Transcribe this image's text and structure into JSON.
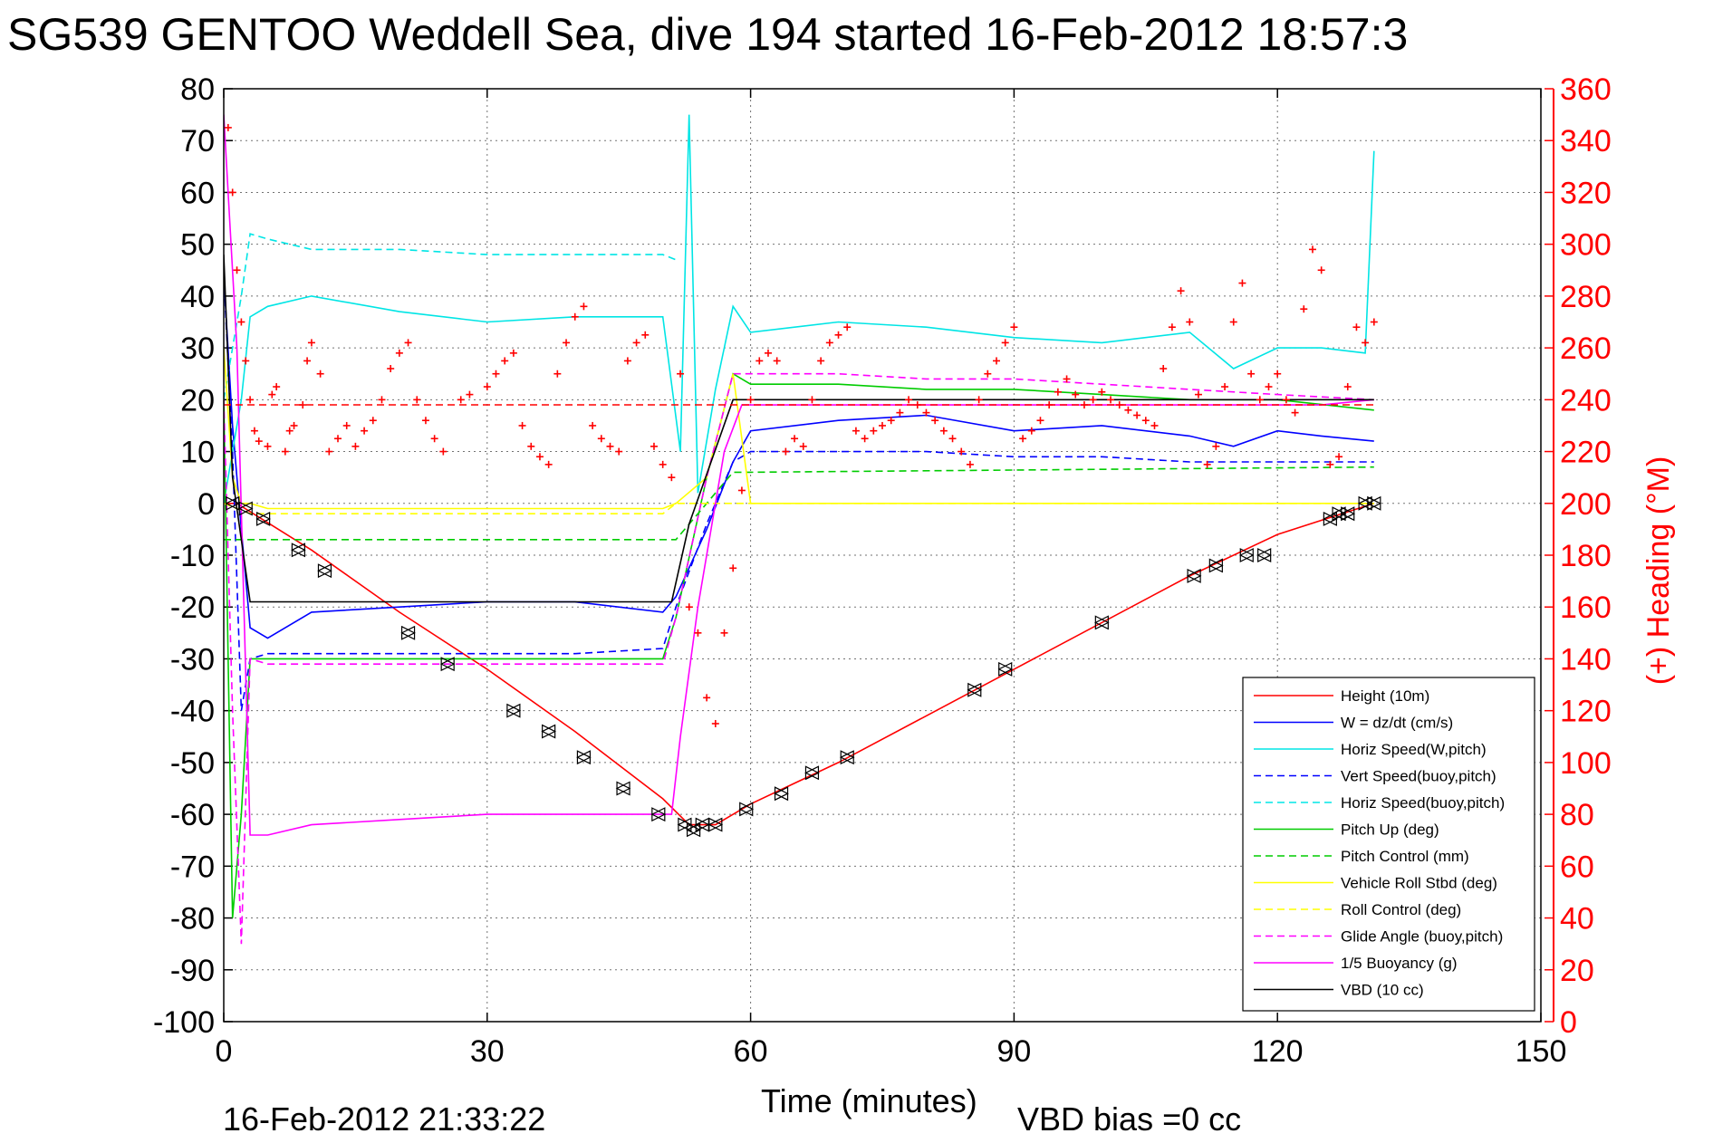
{
  "chart_data": {
    "type": "line",
    "title": "SG539 GENTOO Weddell Sea, dive 194 started 16-Feb-2012 18:57:3",
    "xlabel": "Time (minutes)",
    "ylabel": "",
    "y2label": "(+) Heading (°M)",
    "xlim": [
      0,
      150
    ],
    "ylim": [
      -100,
      80
    ],
    "y2lim": [
      0,
      360
    ],
    "xticks": [
      "0",
      "30",
      "60",
      "90",
      "120",
      "150"
    ],
    "yticks": [
      "80",
      "70",
      "60",
      "50",
      "40",
      "30",
      "20",
      "10",
      "0",
      "-10",
      "-20",
      "-30",
      "-40",
      "-50",
      "-60",
      "-70",
      "-80",
      "-90",
      "-100"
    ],
    "y2ticks": [
      "360",
      "340",
      "320",
      "300",
      "280",
      "260",
      "240",
      "220",
      "200",
      "180",
      "160",
      "140",
      "120",
      "100",
      "80",
      "60",
      "40",
      "20",
      "0"
    ],
    "grid": true,
    "legend_position": "bottom-right",
    "footer_left": "16-Feb-2012 21:33:22",
    "footer_right": "VBD bias =0 cc",
    "series": [
      {
        "name": "Height (10m)",
        "color": "#ff0000",
        "style": "solid",
        "x": [
          0,
          1.5,
          10,
          20,
          30,
          40,
          50,
          53,
          56,
          60,
          70,
          80,
          90,
          100,
          110,
          120,
          131
        ],
        "y": [
          0,
          0,
          -9,
          -21,
          -32,
          -44,
          -57,
          -62,
          -62,
          -58,
          -50,
          -41,
          -32,
          -23,
          -14,
          -6,
          0
        ]
      },
      {
        "name": "W = dz/dt (cm/s)",
        "color": "#0000ff",
        "style": "solid",
        "x": [
          0,
          1,
          2,
          3,
          5,
          10,
          20,
          30,
          40,
          50,
          51.5,
          55,
          58,
          60,
          70,
          80,
          90,
          100,
          110,
          115,
          120,
          125,
          131
        ],
        "y": [
          44,
          15,
          -5,
          -24,
          -26,
          -21,
          -20,
          -19,
          -19,
          -21,
          -18,
          -5,
          8,
          14,
          16,
          17,
          14,
          15,
          13,
          11,
          14,
          13,
          12
        ]
      },
      {
        "name": "Horiz Speed(W,pitch)",
        "color": "#00e5e5",
        "style": "solid",
        "x": [
          0,
          2,
          3,
          5,
          10,
          20,
          30,
          40,
          50,
          52,
          53,
          54,
          56,
          58,
          60,
          70,
          80,
          90,
          100,
          110,
          115,
          120,
          125,
          130,
          131
        ],
        "y": [
          0,
          20,
          36,
          38,
          40,
          37,
          35,
          36,
          36,
          10,
          75,
          2,
          22,
          38,
          33,
          35,
          34,
          32,
          31,
          33,
          26,
          30,
          30,
          29,
          68
        ]
      },
      {
        "name": "Vert Speed(buoy,pitch)",
        "color": "#0000ff",
        "style": "dashed",
        "x": [
          0,
          1,
          2,
          3,
          5,
          10,
          20,
          30,
          40,
          50,
          51.5,
          55,
          58,
          60,
          70,
          80,
          90,
          100,
          110,
          120,
          131
        ],
        "y": [
          44,
          10,
          -40,
          -30,
          -29,
          -29,
          -29,
          -29,
          -29,
          -28,
          -20,
          -4,
          8,
          10,
          10,
          10,
          9,
          9,
          8,
          8,
          8
        ]
      },
      {
        "name": "Horiz Speed(buoy,pitch)",
        "color": "#00e5e5",
        "style": "dashed",
        "x": [
          0,
          2,
          3,
          5,
          10,
          20,
          30,
          40,
          50,
          51.5
        ],
        "y": [
          20,
          40,
          52,
          51,
          49,
          49,
          48,
          48,
          48,
          47
        ]
      },
      {
        "name": "Pitch Up (deg)",
        "color": "#00cc00",
        "style": "solid",
        "x": [
          0,
          1,
          2,
          3,
          5,
          10,
          20,
          30,
          40,
          50,
          51.5,
          55,
          58,
          60,
          70,
          80,
          90,
          100,
          110,
          120,
          131
        ],
        "y": [
          20,
          -80,
          -60,
          -30,
          -30,
          -30,
          -30,
          -30,
          -30,
          -30,
          -22,
          5,
          25,
          23,
          23,
          22,
          22,
          21,
          20,
          20,
          18
        ]
      },
      {
        "name": "Pitch Control (mm)",
        "color": "#00cc00",
        "style": "dashed",
        "x": [
          0,
          3,
          10,
          20,
          30,
          40,
          50,
          51.5,
          55,
          58,
          60,
          131
        ],
        "y": [
          -7,
          -7,
          -7,
          -7,
          -7,
          -7,
          -7,
          -7,
          0,
          6,
          6,
          7
        ]
      },
      {
        "name": "Vehicle Roll Stbd (deg)",
        "color": "#ffff00",
        "style": "solid",
        "x": [
          0,
          1,
          2,
          3,
          5,
          10,
          20,
          30,
          40,
          50,
          51.5,
          55,
          58,
          60,
          70,
          80,
          90,
          100,
          110,
          120,
          131
        ],
        "y": [
          30,
          5,
          0,
          0,
          -1,
          -1,
          -1,
          -1,
          -1,
          -1,
          0,
          5,
          25,
          0,
          0,
          0,
          0,
          0,
          0,
          0,
          0
        ]
      },
      {
        "name": "Roll Control (deg)",
        "color": "#ffff00",
        "style": "dashed",
        "x": [
          0,
          3,
          5,
          10,
          20,
          30,
          40,
          50,
          51.5,
          60,
          70,
          80,
          90,
          100,
          110,
          120,
          131
        ],
        "y": [
          0,
          -2,
          -2,
          -2,
          -2,
          -2,
          -2,
          -2,
          0,
          0,
          0,
          0,
          0,
          0,
          0,
          0,
          0
        ]
      },
      {
        "name": "Glide Angle (buoy,pitch)",
        "color": "#ff00ff",
        "style": "dashed",
        "x": [
          0,
          1,
          2,
          3,
          5,
          10,
          20,
          30,
          40,
          50,
          51.5,
          55,
          58,
          60,
          70,
          80,
          90,
          100,
          110,
          120,
          131
        ],
        "y": [
          20,
          -40,
          -85,
          -30,
          -31,
          -31,
          -31,
          -31,
          -31,
          -31,
          -22,
          5,
          25,
          25,
          25,
          24,
          24,
          23,
          22,
          21,
          20
        ]
      },
      {
        "name": "1/5 Buoyancy (g)",
        "color": "#ff00ff",
        "style": "solid",
        "x": [
          0,
          1.5,
          3,
          5,
          10,
          20,
          30,
          40,
          51,
          52,
          54,
          57,
          59,
          60,
          70,
          80,
          90,
          100,
          110,
          120,
          125,
          131
        ],
        "y": [
          75,
          30,
          -64,
          -64,
          -62,
          -61,
          -60,
          -60,
          -60,
          -45,
          -20,
          10,
          19,
          19,
          19,
          19,
          19,
          19,
          19,
          19,
          19,
          20
        ]
      },
      {
        "name": "VBD (10 cc)",
        "color": "#000000",
        "style": "solid",
        "x": [
          0,
          1,
          3,
          10,
          20,
          30,
          40,
          51,
          53,
          58,
          60,
          70,
          80,
          90,
          100,
          110,
          120,
          131
        ],
        "y": [
          48,
          5,
          -19,
          -19,
          -19,
          -19,
          -19,
          -19,
          -4,
          20,
          20,
          20,
          20,
          20,
          20,
          20,
          20,
          20
        ]
      }
    ],
    "heading": {
      "name": "Heading",
      "color": "#ff0000",
      "marker": "+",
      "reference_line": 238,
      "x": [
        0.5,
        1,
        1.5,
        2,
        2.5,
        3,
        3.5,
        4,
        5,
        5.5,
        6,
        7,
        7.5,
        8,
        9,
        9.5,
        10,
        11,
        12,
        13,
        14,
        15,
        16,
        17,
        18,
        19,
        20,
        21,
        22,
        23,
        24,
        25,
        27,
        28,
        30,
        31,
        32,
        33,
        34,
        35,
        36,
        37,
        38,
        39,
        40,
        41,
        42,
        43,
        44,
        45,
        46,
        47,
        48,
        49,
        50,
        51,
        52,
        53,
        54,
        55,
        56,
        57,
        58,
        59,
        60,
        61,
        62,
        63,
        64,
        65,
        66,
        67,
        68,
        69,
        70,
        71,
        72,
        73,
        74,
        75,
        76,
        77,
        78,
        79,
        80,
        81,
        82,
        83,
        84,
        85,
        86,
        87,
        88,
        89,
        90,
        91,
        92,
        93,
        94,
        95,
        96,
        97,
        98,
        99,
        100,
        101,
        102,
        103,
        104,
        105,
        106,
        107,
        108,
        109,
        110,
        111,
        112,
        113,
        114,
        115,
        116,
        117,
        118,
        119,
        120,
        121,
        122,
        123,
        124,
        125,
        126,
        127,
        128,
        129,
        130,
        131
      ],
      "y": [
        345,
        320,
        290,
        270,
        255,
        240,
        228,
        224,
        222,
        242,
        245,
        220,
        228,
        230,
        238,
        255,
        262,
        250,
        220,
        225,
        230,
        222,
        228,
        232,
        240,
        252,
        258,
        262,
        240,
        232,
        225,
        220,
        240,
        242,
        245,
        250,
        255,
        258,
        230,
        222,
        218,
        215,
        250,
        262,
        272,
        276,
        230,
        225,
        222,
        220,
        255,
        262,
        265,
        222,
        215,
        210,
        250,
        160,
        150,
        125,
        115,
        150,
        175,
        205,
        240,
        255,
        258,
        255,
        220,
        225,
        222,
        240,
        255,
        262,
        265,
        268,
        228,
        225,
        228,
        230,
        232,
        235,
        240,
        238,
        235,
        232,
        228,
        225,
        220,
        215,
        240,
        250,
        255,
        262,
        268,
        225,
        228,
        232,
        238,
        243,
        248,
        242,
        238,
        240,
        243,
        240,
        238,
        236,
        234,
        232,
        230,
        252,
        268,
        282,
        270,
        242,
        215,
        222,
        245,
        270,
        285,
        250,
        240,
        245,
        250,
        240,
        235,
        275,
        298,
        290,
        215,
        218,
        245,
        268,
        262,
        270
      ]
    },
    "position_markers": {
      "name": "Height markers",
      "color": "#000000",
      "x": [
        1,
        2.5,
        4.5,
        8.5,
        11.5,
        21,
        25.5,
        33,
        37,
        41,
        45.5,
        49.5,
        52.5,
        53.5,
        54.5,
        56,
        59.5,
        63.5,
        67,
        71,
        85.5,
        89,
        100,
        110.5,
        113,
        116.5,
        118.5,
        126,
        127,
        128,
        130,
        131
      ],
      "y": [
        0,
        -1,
        -3,
        -9,
        -13,
        -25,
        -31,
        -40,
        -44,
        -49,
        -55,
        -60,
        -62,
        -63,
        -62,
        -62,
        -59,
        -56,
        -52,
        -49,
        -36,
        -32,
        -23,
        -14,
        -12,
        -10,
        -10,
        -3,
        -2,
        -2,
        0,
        0
      ]
    }
  }
}
